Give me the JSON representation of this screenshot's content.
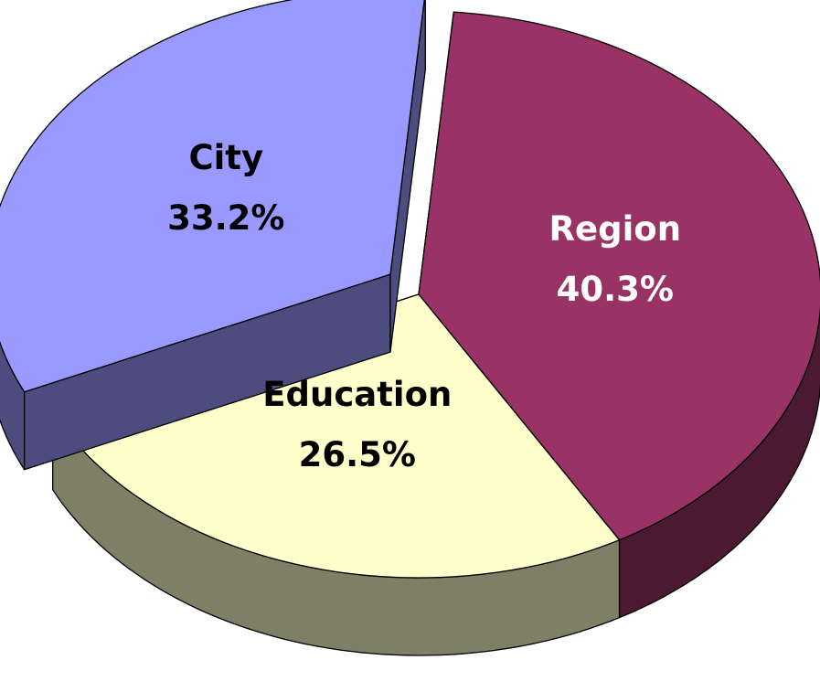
{
  "chart_data": {
    "type": "pie3d",
    "categories": [
      "Region",
      "Education",
      "City"
    ],
    "values": [
      40.3,
      26.5,
      33.2
    ],
    "value_labels": [
      "40.3%",
      "26.5%",
      "33.2%"
    ],
    "colors": [
      "#993366",
      "#ffffcc",
      "#9999ff"
    ],
    "label_colors": [
      "#ffffff",
      "#000000",
      "#000000"
    ],
    "explode": [
      false,
      false,
      true
    ]
  }
}
